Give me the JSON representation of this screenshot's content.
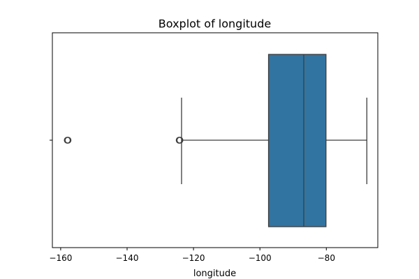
{
  "chart_data": {
    "type": "boxplot",
    "title": "Boxplot of longitude",
    "xlabel": "longitude",
    "ylabel": "",
    "xlim": [
      -162.5,
      -64.5
    ],
    "xticks": [
      -160,
      -140,
      -120,
      -100,
      -80
    ],
    "xtick_labels": [
      "−160",
      "−140",
      "−120",
      "−100",
      "−80"
    ],
    "box": {
      "q1": -97.4,
      "median": -86.8,
      "q3": -80.1,
      "whisker_low": -123.6,
      "whisker_high": -67.8
    },
    "outliers": [
      -157.8,
      -158.0,
      -124.3,
      -124.1
    ],
    "box_color": "#3274a1",
    "grid": false
  }
}
